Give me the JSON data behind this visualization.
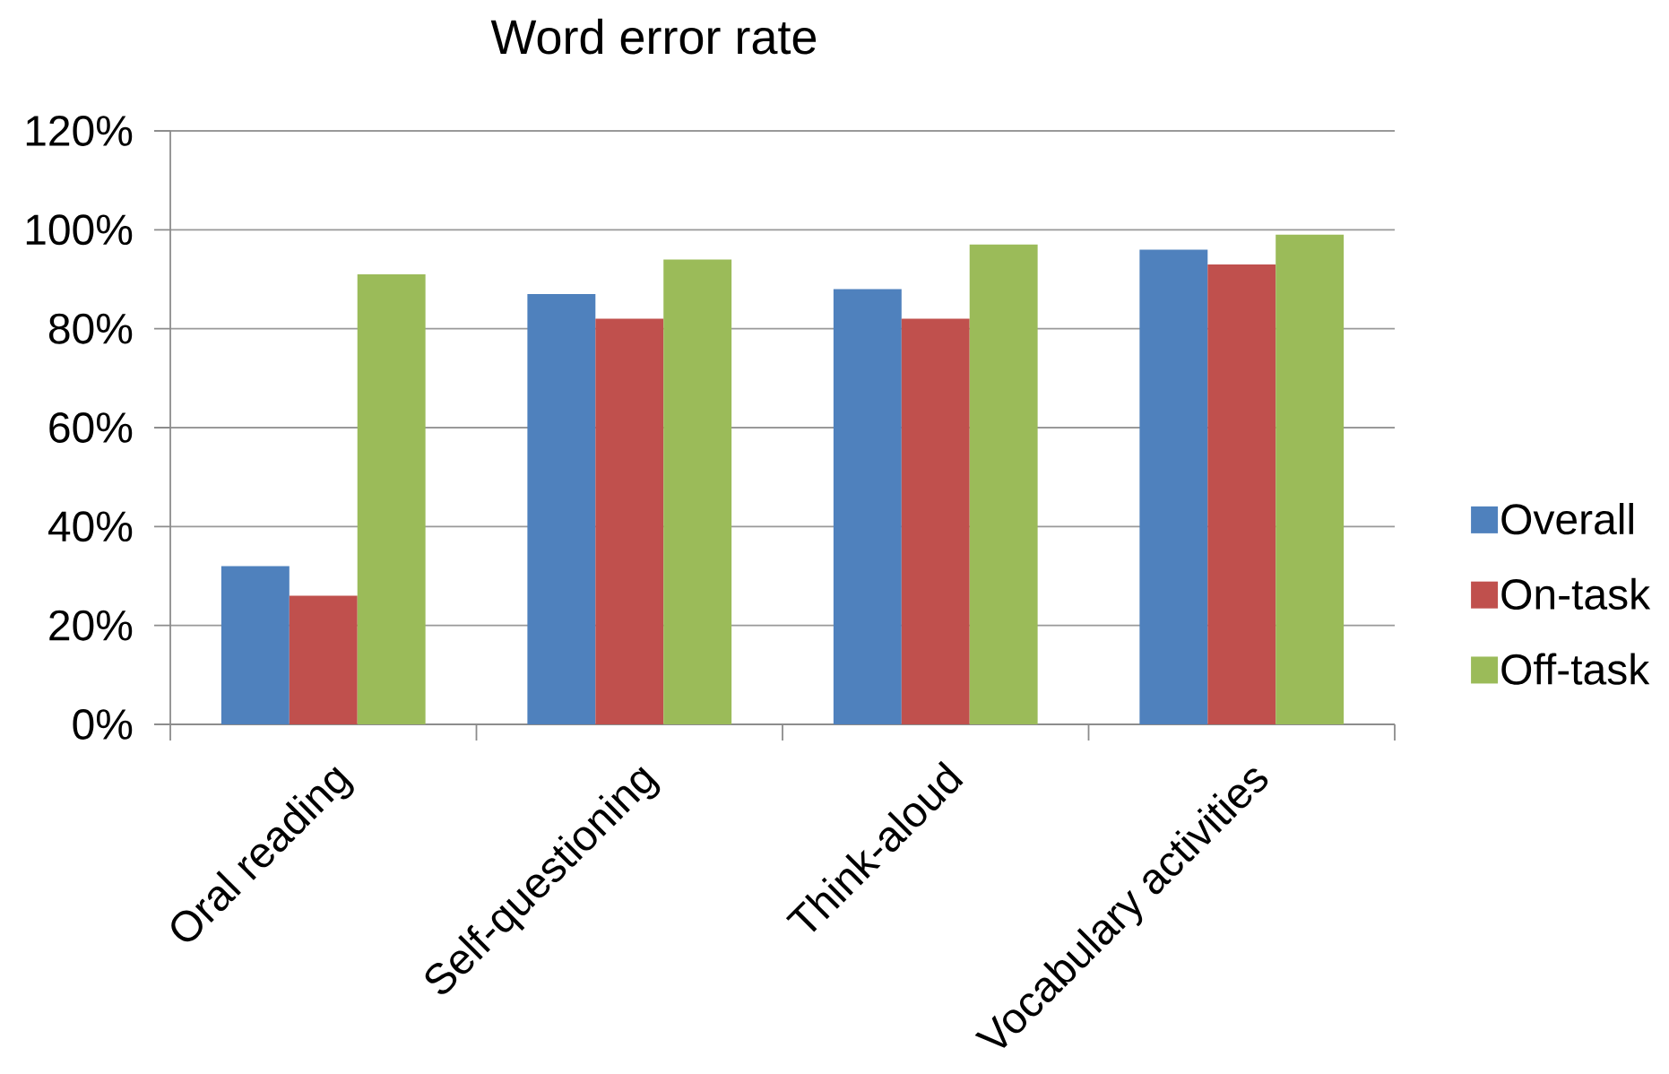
{
  "chart_data": {
    "type": "bar",
    "title": "Word error rate",
    "categories": [
      "Oral reading",
      "Self-questioning",
      "Think-aloud",
      "Vocabulary activities"
    ],
    "series": [
      {
        "name": "Overall",
        "color": "#4f81bd",
        "values": [
          32,
          87,
          88,
          96
        ]
      },
      {
        "name": "On-task",
        "color": "#c0504d",
        "values": [
          26,
          82,
          82,
          93
        ]
      },
      {
        "name": "Off-task",
        "color": "#9bbb59",
        "values": [
          91,
          94,
          97,
          99
        ]
      }
    ],
    "ylim": [
      0,
      120
    ],
    "yticks": [
      {
        "value": 0,
        "label": "0%"
      },
      {
        "value": 20,
        "label": "20%"
      },
      {
        "value": 40,
        "label": "40%"
      },
      {
        "value": 60,
        "label": "60%"
      },
      {
        "value": 80,
        "label": "80%"
      },
      {
        "value": 100,
        "label": "100%"
      },
      {
        "value": 120,
        "label": "120%"
      }
    ],
    "grid": "y",
    "legend": "right"
  }
}
